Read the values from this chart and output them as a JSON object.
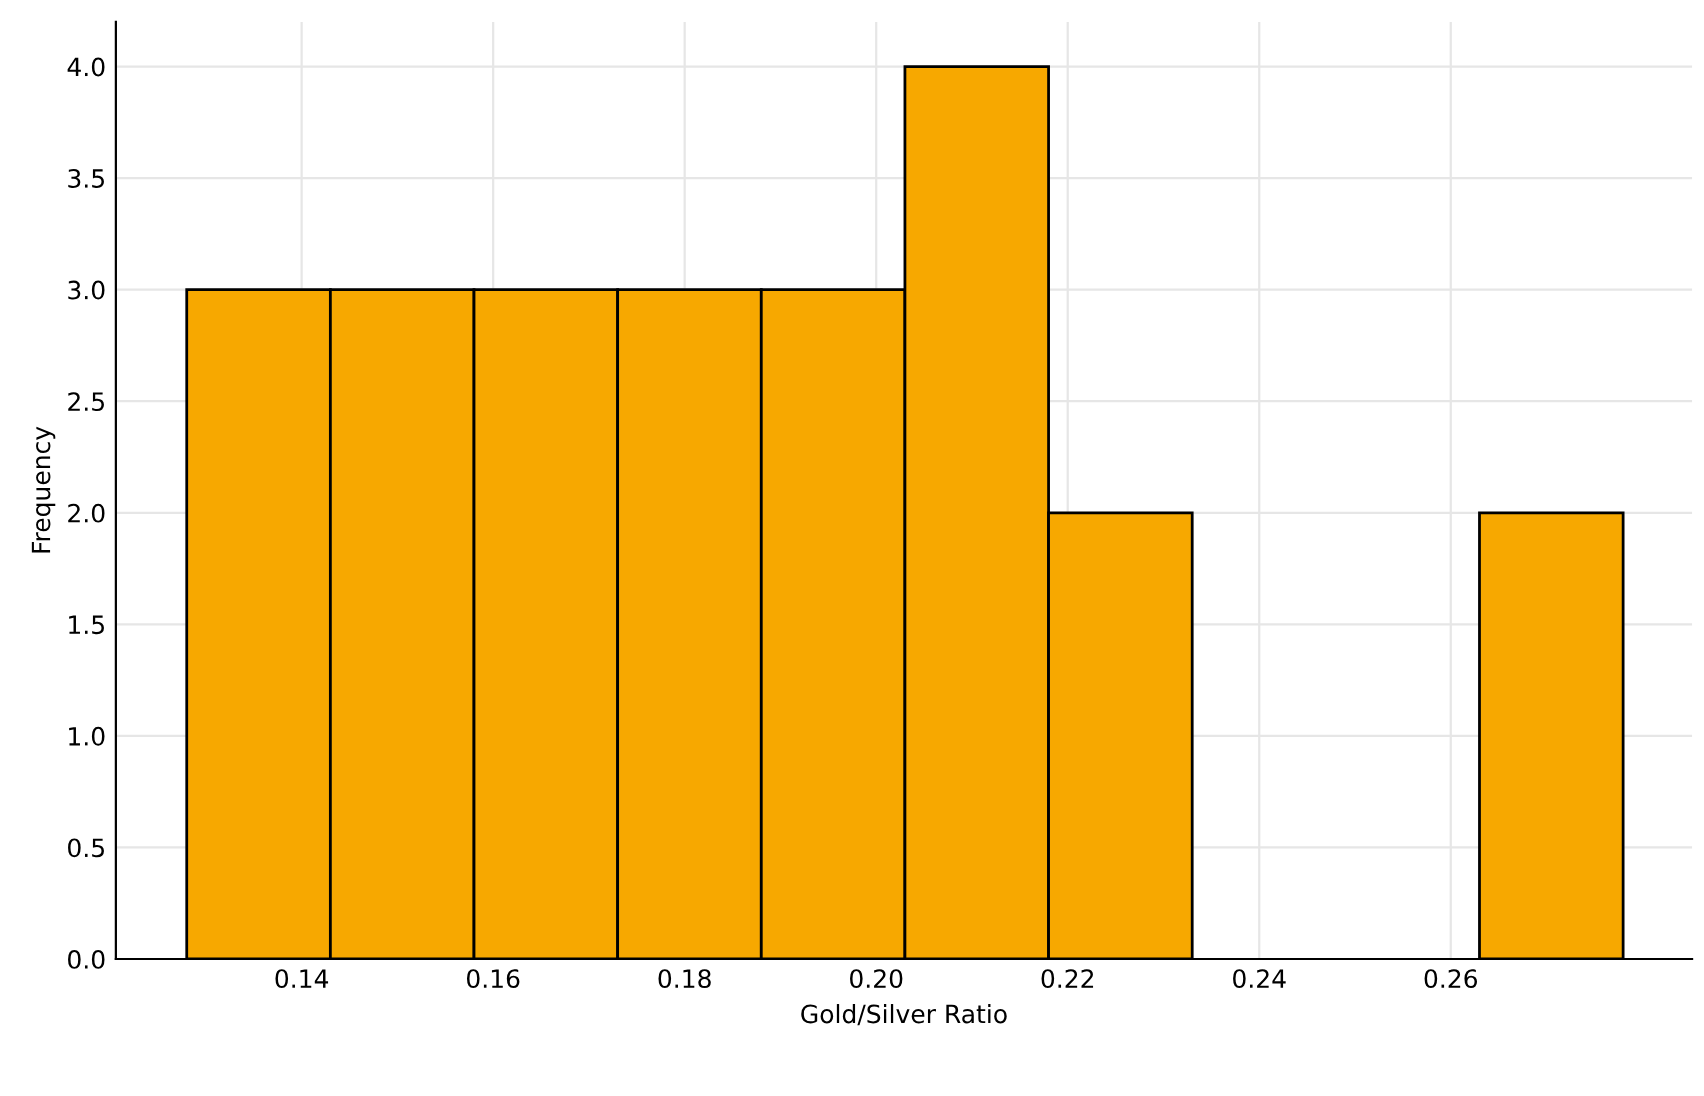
{
  "chart_data": {
    "type": "histogram",
    "xlabel": "Gold/Silver Ratio",
    "ylabel": "Frequency",
    "bins": [
      0.128,
      0.143,
      0.158,
      0.173,
      0.188,
      0.203,
      0.218,
      0.233,
      0.248,
      0.263,
      0.278
    ],
    "values": [
      3,
      3,
      3,
      3,
      3,
      4,
      2,
      0,
      0,
      2
    ],
    "color": "#f7a800",
    "xlim": [
      0.1206,
      0.2852
    ],
    "xticks": [
      0.14,
      0.16,
      0.18,
      {
        "value": 0.2,
        "label": "0.20"
      },
      0.22,
      0.24,
      0.26
    ],
    "ylim": [
      0,
      4.2
    ],
    "yticks": [
      {
        "value": 0,
        "label": "0.0"
      },
      0.5,
      {
        "value": 1,
        "label": "1.0"
      },
      1.5,
      {
        "value": 2,
        "label": "2.0"
      },
      2.5,
      {
        "value": 3,
        "label": "3.0"
      },
      3.5,
      {
        "value": 4,
        "label": "4.0"
      }
    ],
    "grid": true
  }
}
